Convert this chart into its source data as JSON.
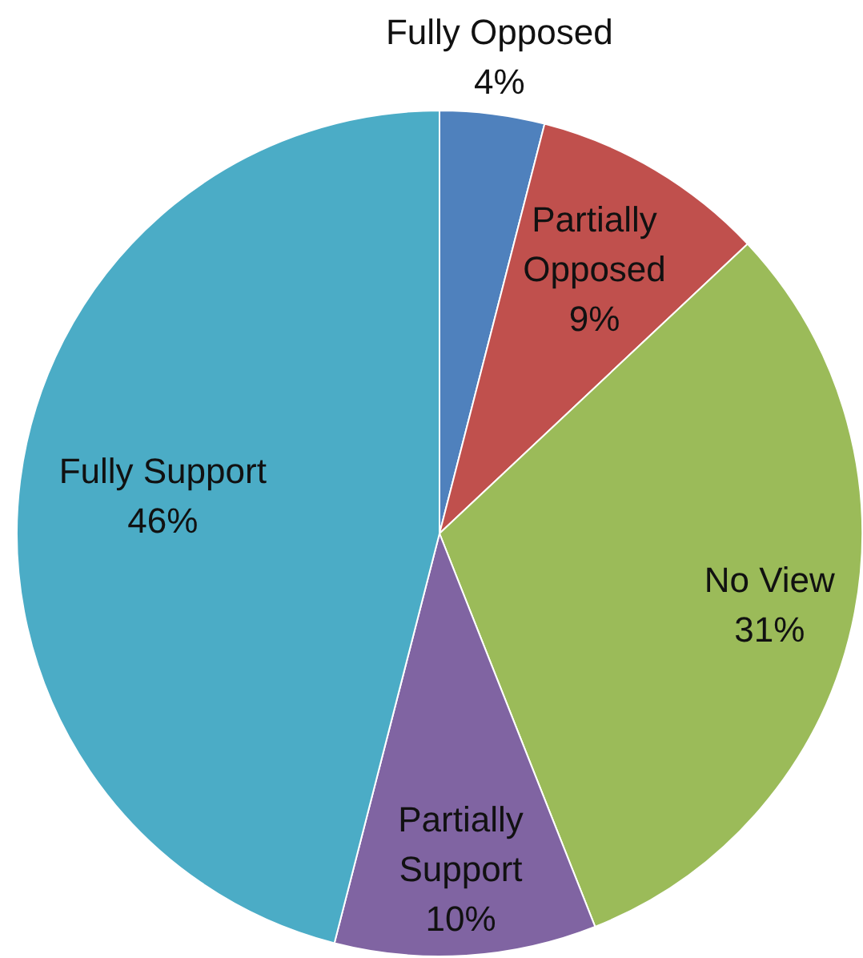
{
  "chart_data": {
    "type": "pie",
    "categories": [
      "Fully Opposed",
      "Partially Opposed",
      "No View",
      "Partially Support",
      "Fully Support"
    ],
    "values": [
      4,
      9,
      31,
      10,
      46
    ],
    "colors": [
      "#4f81bd",
      "#c0504d",
      "#9bbb59",
      "#8064a2",
      "#4bacc6"
    ],
    "value_labels": [
      "4%",
      "9%",
      "31%",
      "10%",
      "46%"
    ],
    "legend": false
  }
}
